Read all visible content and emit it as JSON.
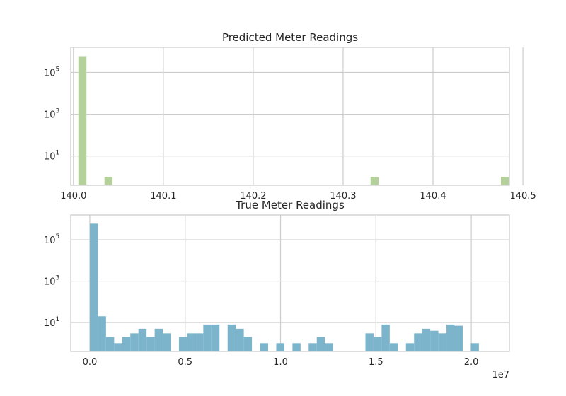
{
  "chart_data": [
    {
      "type": "histogram",
      "title": "Predicted Meter Readings",
      "xlabel": "",
      "ylabel": "",
      "yscale": "log",
      "color": "#b5d19b",
      "grid": true,
      "xlim": [
        139.997,
        140.485
      ],
      "ylim_exponents": [
        -0.4,
        6.2
      ],
      "xticks": [
        {
          "v": 140.0,
          "label": "140.0"
        },
        {
          "v": 140.1,
          "label": "140.1"
        },
        {
          "v": 140.2,
          "label": "140.2"
        },
        {
          "v": 140.3,
          "label": "140.3"
        },
        {
          "v": 140.4,
          "label": "140.4"
        },
        {
          "v": 140.5,
          "label": "140.5"
        }
      ],
      "yticks": [
        {
          "exp": 1,
          "base": "10",
          "sup": "1"
        },
        {
          "exp": 3,
          "base": "10",
          "sup": "3"
        },
        {
          "exp": 5,
          "base": "10",
          "sup": "5"
        }
      ],
      "bins": [
        {
          "x0": 140.0055,
          "x1": 140.0145,
          "count": 600000
        },
        {
          "x0": 140.0345,
          "x1": 140.0435,
          "count": 1
        },
        {
          "x0": 140.3305,
          "x1": 140.3395,
          "count": 1
        },
        {
          "x0": 140.4755,
          "x1": 140.4845,
          "count": 1
        }
      ]
    },
    {
      "type": "histogram",
      "title": "True Meter Readings",
      "xlabel": "",
      "ylabel": "",
      "yscale": "log",
      "color": "#7cb4cc",
      "grid": true,
      "offset_label": "1e7",
      "xlim": [
        -0.1,
        2.2
      ],
      "ylim_exponents": [
        -0.4,
        6.2
      ],
      "xticks": [
        {
          "v": 0.0,
          "label": "0.0"
        },
        {
          "v": 0.5,
          "label": "0.5"
        },
        {
          "v": 1.0,
          "label": "1.0"
        },
        {
          "v": 1.5,
          "label": "1.5"
        },
        {
          "v": 2.0,
          "label": "2.0"
        }
      ],
      "yticks": [
        {
          "exp": 1,
          "base": "10",
          "sup": "1"
        },
        {
          "exp": 3,
          "base": "10",
          "sup": "3"
        },
        {
          "exp": 5,
          "base": "10",
          "sup": "5"
        }
      ],
      "bin_start": 0.0,
      "bin_width": 0.0425,
      "counts": [
        600000,
        20,
        2,
        1,
        2,
        3,
        5,
        2,
        5,
        3,
        0,
        2,
        3,
        3,
        8,
        8,
        0,
        8,
        5,
        2,
        0,
        1,
        0,
        1,
        0,
        1,
        0,
        1,
        2,
        1,
        0,
        0,
        0,
        0,
        3,
        2,
        8,
        1,
        0,
        1,
        3,
        5,
        4,
        3,
        8,
        7,
        0,
        1
      ]
    }
  ]
}
